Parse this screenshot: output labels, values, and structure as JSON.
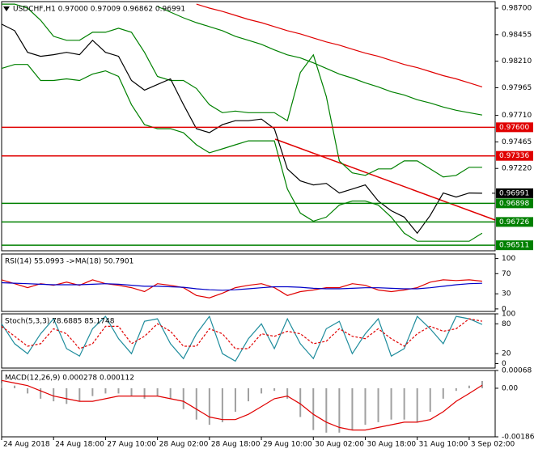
{
  "chart_data": [
    {
      "type": "line",
      "title": "USDCHF,H1  0.97000 0.97009 0.96862 0.96991",
      "x": [
        0,
        4,
        8,
        12,
        16,
        20,
        24,
        28,
        32,
        36,
        40,
        44,
        48,
        52,
        56,
        60,
        64,
        68,
        72,
        76,
        80,
        84,
        88,
        92,
        96,
        100,
        104,
        108,
        112,
        116,
        120,
        124,
        128,
        132,
        136,
        140,
        144,
        148
      ],
      "xlim": [
        0,
        152
      ],
      "ylim": [
        0.9646,
        0.9876
      ],
      "yticks": [
        {
          "value": 0.987,
          "label": "0.98700"
        },
        {
          "value": 0.98455,
          "label": "0.98455"
        },
        {
          "value": 0.9821,
          "label": "0.98210"
        },
        {
          "value": 0.97965,
          "label": "0.97965"
        },
        {
          "value": 0.9771,
          "label": "0.97710"
        },
        {
          "value": 0.97465,
          "label": "0.97465"
        },
        {
          "value": 0.9722,
          "label": "0.97220"
        }
      ],
      "levels": [
        {
          "value": 0.976,
          "label": "0.97600",
          "color": "#e00000"
        },
        {
          "value": 0.97336,
          "label": "0.97336",
          "color": "#e00000"
        },
        {
          "value": 0.96898,
          "label": "0.96898",
          "color": "#008000"
        },
        {
          "value": 0.96726,
          "label": "0.96726",
          "color": "#008000"
        },
        {
          "value": 0.96511,
          "label": "0.96511",
          "color": "#008000"
        }
      ],
      "current": {
        "value": 0.96991,
        "label": "0.96991",
        "color": "#000000"
      },
      "series": [
        {
          "color": "#008000",
          "style": "line",
          "values": [
            0.98737,
            0.98737,
            0.987,
            0.98588,
            0.9844,
            0.98403,
            0.98403,
            0.98477,
            0.98477,
            0.98514,
            0.98477,
            0.98292,
            0.98069,
            0.98032,
            0.98032,
            0.97958,
            0.97809,
            0.97735,
            0.9775,
            0.97735,
            0.97735,
            0.97735,
            0.97661,
            0.98106,
            0.98269,
            0.97884,
            0.9729,
            0.97179,
            0.97156,
            0.97216,
            0.97216,
            0.9729,
            0.9729,
            0.97216,
            0.97142,
            0.97156,
            0.97231,
            0.97231
          ]
        },
        {
          "color": "#008000",
          "style": "line",
          "values": [
            0.98143,
            0.9818,
            0.9818,
            0.98032,
            0.98032,
            0.98047,
            0.98032,
            0.98091,
            0.98121,
            0.98069,
            0.97809,
            0.97624,
            0.97587,
            0.97587,
            0.9755,
            0.97438,
            0.97364,
            0.97401,
            0.97438,
            0.97475,
            0.97475,
            0.97475,
            0.9703,
            0.96808,
            0.96733,
            0.96771,
            0.96882,
            0.96919,
            0.96919,
            0.96882,
            0.96771,
            0.96622,
            0.96548,
            0.96548,
            0.96548,
            0.96548,
            0.96548,
            0.96622
          ]
        },
        {
          "color": "#008000",
          "style": "line",
          "values": [
            null,
            null,
            null,
            null,
            null,
            null,
            null,
            null,
            null,
            null,
            null,
            null,
            0.98715,
            0.98663,
            0.98611,
            0.98566,
            0.98529,
            0.98492,
            0.9844,
            0.98403,
            0.98366,
            0.98314,
            0.98269,
            0.9824,
            0.98195,
            0.98143,
            0.98091,
            0.98054,
            0.9801,
            0.97973,
            0.97928,
            0.97898,
            0.97854,
            0.97824,
            0.97787,
            0.97757,
            0.97735,
            0.97713
          ]
        },
        {
          "color": "#e00000",
          "style": "line",
          "values": [
            null,
            null,
            null,
            null,
            null,
            null,
            null,
            null,
            null,
            null,
            null,
            null,
            null,
            null,
            null,
            0.98737,
            0.987,
            0.9867,
            0.98633,
            0.98596,
            0.98566,
            0.98529,
            0.98492,
            0.98462,
            0.98425,
            0.98388,
            0.98358,
            0.98321,
            0.98284,
            0.98255,
            0.98217,
            0.9818,
            0.98151,
            0.98114,
            0.98077,
            0.98047,
            0.9801,
            0.97973
          ]
        },
        {
          "color": "#000000",
          "style": "line",
          "values": [
            0.98552,
            0.98492,
            0.98292,
            0.98255,
            0.9827,
            0.98292,
            0.9827,
            0.98403,
            0.98292,
            0.98255,
            0.98032,
            0.97943,
            0.97995,
            0.98047,
            0.9781,
            0.97587,
            0.9755,
            0.97624,
            0.97661,
            0.97661,
            0.97676,
            0.97587,
            0.97216,
            0.97105,
            0.97068,
            0.97082,
            0.96993,
            0.9703,
            0.97068,
            0.96919,
            0.9683,
            0.96771,
            0.96622,
            0.96786,
            0.96993,
            0.96956,
            0.96993,
            0.96991
          ]
        }
      ]
    },
    {
      "type": "line",
      "title": "RSI(14) 55.0993 ->MA(18) 50.7901",
      "x": [
        0,
        4,
        8,
        12,
        16,
        20,
        24,
        28,
        32,
        36,
        40,
        44,
        48,
        52,
        56,
        60,
        64,
        68,
        72,
        76,
        80,
        84,
        88,
        92,
        96,
        100,
        104,
        108,
        112,
        116,
        120,
        124,
        128,
        132,
        136,
        140,
        144,
        148
      ],
      "xlim": [
        0,
        152
      ],
      "ylim": [
        -5,
        109
      ],
      "yticks": [
        100,
        70,
        30,
        0
      ],
      "series": [
        {
          "color": "#e00000",
          "style": "line",
          "values": [
            57.8,
            50,
            42.2,
            50,
            46.9,
            53.1,
            46.9,
            57.8,
            50,
            46.9,
            42.2,
            34.4,
            50,
            46.9,
            42.2,
            26.6,
            21.9,
            31.3,
            42.2,
            46.9,
            50,
            42.2,
            26.6,
            34.4,
            37.5,
            42.2,
            42.2,
            50,
            46.9,
            37.5,
            34.4,
            37.5,
            42.2,
            53.1,
            57.8,
            56.3,
            57.8,
            55.1
          ]
        },
        {
          "color": "#0000c8",
          "style": "line",
          "values": [
            52,
            51,
            50,
            49,
            48,
            48,
            48,
            49,
            50,
            49,
            47,
            45,
            45,
            44,
            43,
            40,
            38,
            37,
            38,
            40,
            42,
            44,
            44,
            43,
            41,
            40,
            40,
            41,
            42,
            42,
            41,
            40,
            40,
            42,
            45,
            48,
            50,
            50.8
          ]
        }
      ]
    },
    {
      "type": "line",
      "title": "Stoch(5,3,3) 78.6885 85.1748",
      "x": [
        0,
        4,
        8,
        12,
        16,
        20,
        24,
        28,
        32,
        36,
        40,
        44,
        48,
        52,
        56,
        60,
        64,
        68,
        72,
        76,
        80,
        84,
        88,
        92,
        96,
        100,
        104,
        108,
        112,
        116,
        120,
        124,
        128,
        132,
        136,
        140,
        144,
        148
      ],
      "xlim": [
        0,
        152
      ],
      "ylim": [
        -9,
        100
      ],
      "yticks": [
        100,
        80,
        20,
        0
      ],
      "series": [
        {
          "color": "#1e8c9c",
          "style": "line",
          "values": [
            80,
            40,
            20,
            60,
            90,
            30,
            15,
            70,
            95,
            50,
            20,
            85,
            90,
            40,
            10,
            60,
            95,
            20,
            5,
            50,
            80,
            30,
            90,
            40,
            10,
            70,
            85,
            20,
            60,
            90,
            15,
            30,
            95,
            70,
            40,
            95,
            90,
            78.7
          ]
        },
        {
          "color": "#e00000",
          "style": "dashed",
          "values": [
            75,
            55,
            35,
            40,
            70,
            60,
            30,
            40,
            75,
            75,
            40,
            55,
            80,
            65,
            35,
            35,
            70,
            60,
            30,
            30,
            60,
            55,
            65,
            60,
            40,
            45,
            70,
            55,
            50,
            70,
            50,
            35,
            60,
            75,
            65,
            70,
            90,
            85.2
          ]
        }
      ]
    },
    {
      "type": "bar",
      "title": "MACD(12,26,9) 0.000278 0.000112",
      "x": [
        0,
        4,
        8,
        12,
        16,
        20,
        24,
        28,
        32,
        36,
        40,
        44,
        48,
        52,
        56,
        60,
        64,
        68,
        72,
        76,
        80,
        84,
        88,
        92,
        96,
        100,
        104,
        108,
        112,
        116,
        120,
        124,
        128,
        132,
        136,
        140,
        144,
        148
      ],
      "xlim": [
        0,
        152
      ],
      "ylim": [
        -0.00186,
        0.00068
      ],
      "yticks": [
        {
          "value": 0.00068,
          "label": "0.00068"
        },
        {
          "value": 0,
          "label": "0.00"
        },
        {
          "value": -0.00186,
          "label": "-0.00186"
        }
      ],
      "xticks": [
        {
          "value": 0,
          "label": "24 Aug 2018"
        },
        {
          "value": 16,
          "label": "24 Aug 18:00"
        },
        {
          "value": 32,
          "label": "27 Aug 10:00"
        },
        {
          "value": 48,
          "label": "28 Aug 02:00"
        },
        {
          "value": 64,
          "label": "28 Aug 18:00"
        },
        {
          "value": 80,
          "label": "29 Aug 10:00"
        },
        {
          "value": 96,
          "label": "30 Aug 02:00"
        },
        {
          "value": 112,
          "label": "30 Aug 18:00"
        },
        {
          "value": 128,
          "label": "31 Aug 10:00"
        },
        {
          "value": 144,
          "label": "3 Sep 02:00"
        }
      ],
      "series": [
        {
          "color": "#a0a0a0",
          "style": "bar",
          "values": [
            0.0002,
            0.0001,
            -0.0002,
            -0.0004,
            -0.0005,
            -0.0006,
            -0.0005,
            -0.0003,
            -0.0002,
            -0.0002,
            -0.0003,
            -0.0004,
            -0.0003,
            -0.0004,
            -0.0008,
            -0.0012,
            -0.0014,
            -0.0013,
            -0.0009,
            -0.0005,
            -0.0002,
            -0.0001,
            -0.0004,
            -0.0011,
            -0.0016,
            -0.0017,
            -0.0017,
            -0.0016,
            -0.0014,
            -0.0013,
            -0.0012,
            -0.0012,
            -0.0013,
            -0.0009,
            -0.0004,
            -0.0001,
            0.0001,
            0.000278
          ]
        },
        {
          "color": "#e00000",
          "style": "line",
          "values": [
            0.0003,
            0.0002,
            0.0001,
            -0.0001,
            -0.0003,
            -0.0004,
            -0.0005,
            -0.0005,
            -0.0004,
            -0.0003,
            -0.0003,
            -0.0003,
            -0.0003,
            -0.0004,
            -0.0005,
            -0.0008,
            -0.0011,
            -0.0012,
            -0.0012,
            -0.001,
            -0.0007,
            -0.0004,
            -0.0003,
            -0.0006,
            -0.001,
            -0.0013,
            -0.0015,
            -0.0016,
            -0.0016,
            -0.0015,
            -0.0014,
            -0.0013,
            -0.0013,
            -0.0012,
            -0.0009,
            -0.0005,
            -0.0002,
            0.000112
          ]
        }
      ]
    }
  ]
}
